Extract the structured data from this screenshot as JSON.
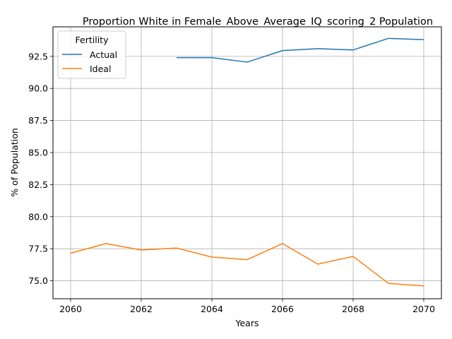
{
  "chart_data": {
    "type": "line",
    "title": "Proportion White in Female_Above_Average_IQ_scoring_2 Population",
    "xlabel": "Years",
    "ylabel": "% of Population",
    "xlim": [
      2059.5,
      2070.5
    ],
    "ylim": [
      73.6,
      94.8
    ],
    "xticks": [
      "2060",
      "2062",
      "2064",
      "2066",
      "2068",
      "2070"
    ],
    "yticks": [
      "75.0",
      "77.5",
      "80.0",
      "82.5",
      "85.0",
      "87.5",
      "90.0",
      "92.5"
    ],
    "grid": true,
    "legend": {
      "title": "Fertility",
      "position": "top-left"
    },
    "series": [
      {
        "name": "Actual",
        "color": "#1f77b4",
        "x": [
          2063,
          2064,
          2065,
          2066,
          2067,
          2068,
          2069,
          2070
        ],
        "y": [
          92.4,
          92.4,
          92.05,
          92.95,
          93.1,
          93.0,
          93.9,
          93.8
        ]
      },
      {
        "name": "Ideal",
        "color": "#ff7f0e",
        "x": [
          2060,
          2061,
          2062,
          2063,
          2064,
          2065,
          2066,
          2067,
          2068,
          2069,
          2070
        ],
        "y": [
          77.15,
          77.9,
          77.4,
          77.55,
          76.85,
          76.65,
          77.9,
          76.3,
          76.9,
          74.8,
          74.6
        ]
      }
    ]
  }
}
